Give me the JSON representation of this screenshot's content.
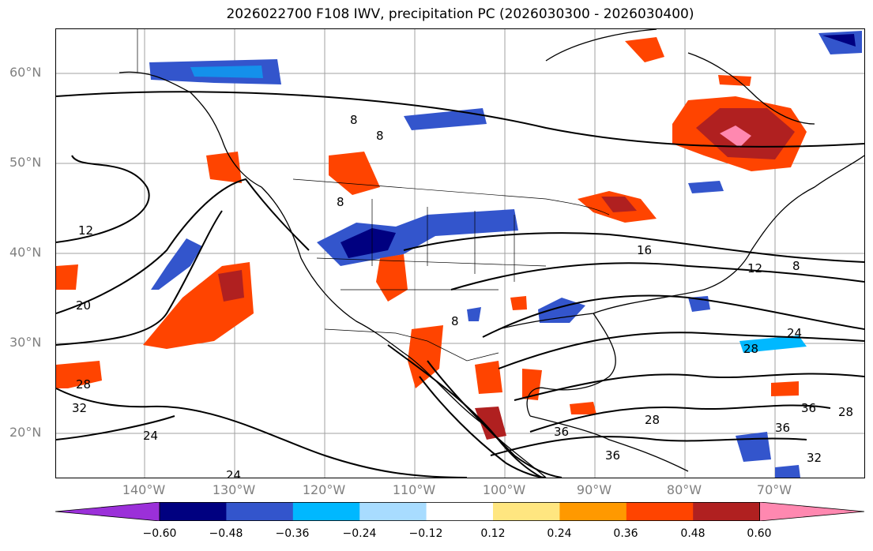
{
  "title": "2026022700 F108 IWV, precipitation PC (2026030300 - 2026030400)",
  "latitudes": [
    "60°N",
    "50°N",
    "40°N",
    "30°N",
    "20°N"
  ],
  "longitudes": [
    "140°W",
    "130°W",
    "120°W",
    "110°W",
    "100°W",
    "90°W",
    "80°W",
    "70°W"
  ],
  "colorbar": {
    "ticks": [
      "−0.60",
      "−0.48",
      "−0.36",
      "−0.24",
      "−0.12",
      "0.12",
      "0.24",
      "0.36",
      "0.48",
      "0.60"
    ],
    "colors": [
      "#9b30d9",
      "#000080",
      "#3355cc",
      "#00b8ff",
      "#a8dcff",
      "#ffffff",
      "#ffe680",
      "#ff9900",
      "#ff4400",
      "#b02020",
      "#ff88b0"
    ]
  },
  "contour_labels": [
    "8",
    "8",
    "8",
    "8",
    "8",
    "12",
    "12",
    "16",
    "20",
    "24",
    "24",
    "24",
    "28",
    "28",
    "28",
    "32",
    "32",
    "36",
    "36",
    "36",
    "36",
    "28"
  ],
  "colors": {
    "contour": "#000000",
    "coast": "#000000",
    "grid": "#a0a0a0",
    "axis_text": "#808080"
  }
}
